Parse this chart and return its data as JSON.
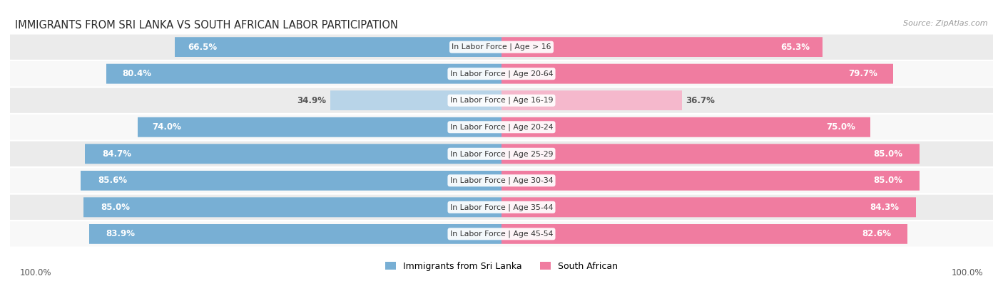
{
  "title": "IMMIGRANTS FROM SRI LANKA VS SOUTH AFRICAN LABOR PARTICIPATION",
  "source": "Source: ZipAtlas.com",
  "categories": [
    "In Labor Force | Age > 16",
    "In Labor Force | Age 20-64",
    "In Labor Force | Age 16-19",
    "In Labor Force | Age 20-24",
    "In Labor Force | Age 25-29",
    "In Labor Force | Age 30-34",
    "In Labor Force | Age 35-44",
    "In Labor Force | Age 45-54"
  ],
  "sri_lanka_values": [
    66.5,
    80.4,
    34.9,
    74.0,
    84.7,
    85.6,
    85.0,
    83.9
  ],
  "south_african_values": [
    65.3,
    79.7,
    36.7,
    75.0,
    85.0,
    85.0,
    84.3,
    82.6
  ],
  "max_value": 100.0,
  "sri_lanka_color": "#78afd4",
  "sri_lanka_color_light": "#b8d4e8",
  "south_african_color": "#f07ca0",
  "south_african_color_light": "#f5b8cc",
  "row_bg_color": "#ebebeb",
  "row_alt_bg_color": "#f8f8f8",
  "legend_sri_lanka": "Immigrants from Sri Lanka",
  "legend_south_african": "South African",
  "bottom_label": "100.0%"
}
